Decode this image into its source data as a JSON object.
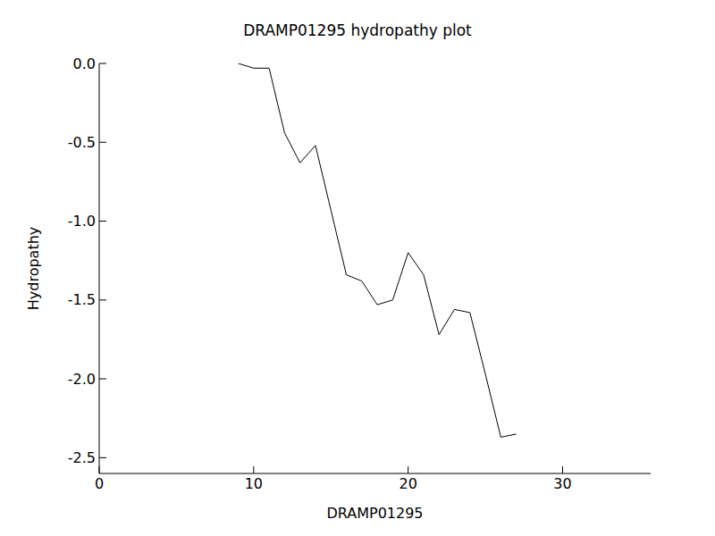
{
  "chart_data": {
    "type": "line",
    "title": "DRAMP01295 hydropathy plot",
    "x_label": "DRAMP01295",
    "y_label": "Hydropathy",
    "x": [
      9,
      10,
      11,
      12,
      13,
      14,
      15,
      16,
      17,
      18,
      19,
      20,
      21,
      22,
      23,
      24,
      25,
      26,
      27
    ],
    "values": [
      0.0,
      -0.03,
      -0.03,
      -0.44,
      -0.63,
      -0.52,
      -0.93,
      -1.34,
      -1.38,
      -1.53,
      -1.5,
      -1.2,
      -1.34,
      -1.72,
      -1.56,
      -1.58,
      -1.97,
      -2.37,
      -2.35
    ],
    "color": "#000000",
    "xlim": [
      0,
      35.7
    ],
    "ylim": [
      -2.6,
      0
    ],
    "xticks": [
      0,
      10,
      20,
      30
    ],
    "yticks": [
      {
        "value": 0,
        "label": "0.0"
      },
      {
        "value": -0.5,
        "label": "-0.5"
      },
      {
        "value": -1,
        "label": "-1.0"
      },
      {
        "value": -1.5,
        "label": "-1.5"
      },
      {
        "value": -2,
        "label": "-2.0"
      },
      {
        "value": -2.5,
        "label": "-2.5"
      }
    ],
    "grid": false
  }
}
